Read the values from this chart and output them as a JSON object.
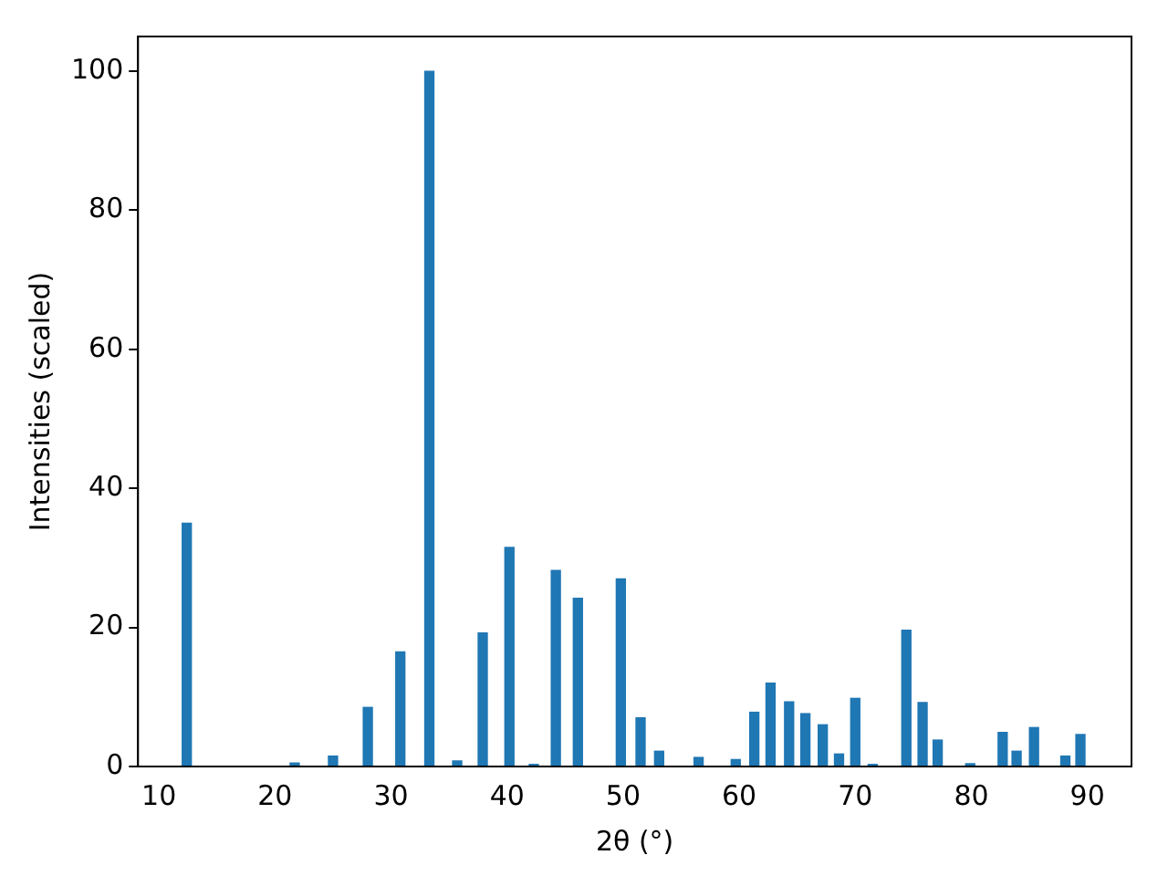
{
  "chart_data": {
    "type": "bar",
    "xlabel": "2θ (°)",
    "ylabel": "Intensities (scaled)",
    "x": [
      12.4,
      21.7,
      25.0,
      28.0,
      30.8,
      33.3,
      35.7,
      37.9,
      40.2,
      42.3,
      44.2,
      46.1,
      49.8,
      51.5,
      53.1,
      56.5,
      59.7,
      61.3,
      62.7,
      64.3,
      65.7,
      67.2,
      68.6,
      70.0,
      71.5,
      74.4,
      75.8,
      77.1,
      79.9,
      82.7,
      83.9,
      85.4,
      88.1,
      89.4
    ],
    "values": [
      35,
      0.5,
      1.5,
      8.5,
      16.5,
      100,
      0.8,
      19.2,
      31.5,
      0.3,
      28.2,
      24.2,
      27,
      7,
      2.2,
      1.3,
      1.0,
      7.8,
      12,
      9.3,
      7.6,
      6.0,
      1.8,
      9.8,
      0.3,
      19.6,
      9.2,
      3.8,
      0.4,
      4.9,
      2.2,
      5.6,
      1.5,
      4.6
    ],
    "color": "#1f77b4",
    "xlim": [
      8.2,
      93.8
    ],
    "xticks": [
      10,
      20,
      30,
      40,
      50,
      60,
      70,
      80,
      90
    ],
    "ylim": [
      0,
      105
    ],
    "yticks": [
      0,
      20,
      40,
      60,
      80,
      100
    ],
    "grid": false,
    "legend": false
  }
}
